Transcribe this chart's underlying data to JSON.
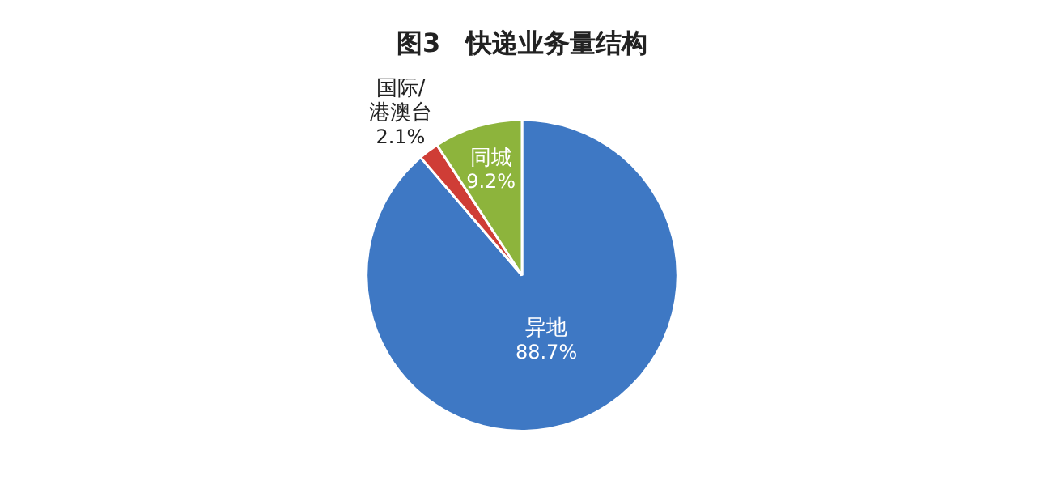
{
  "chart_data": {
    "type": "pie",
    "title": "图3　快递业务量结构",
    "categories": [
      "异地",
      "国际/港澳台",
      "同城"
    ],
    "values": [
      88.7,
      2.1,
      9.2
    ],
    "colors": [
      "#3e78c4",
      "#cf3d36",
      "#8db43c"
    ],
    "value_labels": [
      "88.7%",
      "2.1%",
      "9.2%"
    ],
    "legend": false
  }
}
